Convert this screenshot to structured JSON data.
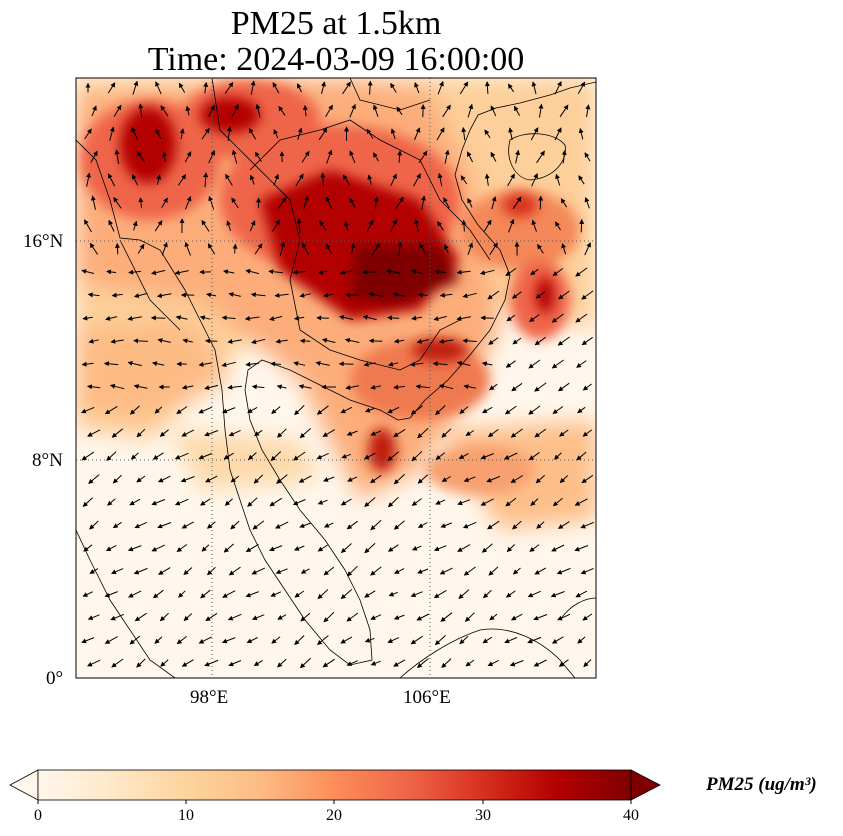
{
  "title": {
    "line1": "PM25 at 1.5km",
    "line2": "Time: 2024-03-09 16:00:00"
  },
  "map": {
    "projection": "PlateCarree",
    "lon_range": [
      93,
      112
    ],
    "lat_range": [
      0,
      22
    ],
    "gridlines": "dotted",
    "lat_ticks": [
      {
        "value": 16,
        "label": "16°N"
      },
      {
        "value": 8,
        "label": "8°N"
      },
      {
        "value": 0,
        "label": "0°"
      }
    ],
    "lon_ticks": [
      {
        "value": 98,
        "label": "98°E"
      },
      {
        "value": 106,
        "label": "106°E"
      }
    ],
    "field": "PM25",
    "overlay": "wind vectors (black arrows)",
    "colormap": "OrRd"
  },
  "colorbar": {
    "min": 0,
    "max": 40,
    "extend": "both",
    "ticks": [
      "0",
      "10",
      "20",
      "30",
      "40"
    ],
    "label": "PM25 (ug/m³)",
    "colors": [
      "#fff7ec",
      "#fee8c8",
      "#fdd49e",
      "#fdbb84",
      "#fc8d59",
      "#ef6548",
      "#d7301f",
      "#b30000",
      "#7f0000"
    ]
  }
}
